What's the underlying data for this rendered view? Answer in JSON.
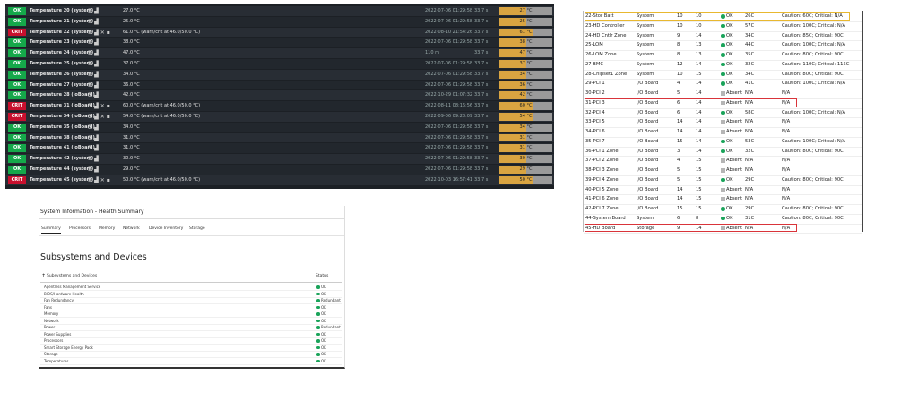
{
  "monitor": {
    "rows": [
      [
        "OK",
        "Temperature 20 (system)",
        "27.0 °C",
        "2022-07-06 01:29:58",
        "33.7 s",
        "27 °C"
      ],
      [
        "OK",
        "Temperature 21 (system)",
        "25.0 °C",
        "2022-07-06 01:29:58",
        "33.7 s",
        "25 °C"
      ],
      [
        "CRIT",
        "Temperature 22 (system)",
        "61.0 °C (warn/crit at 46.0/50.0 °C)",
        "2022-08-10 21:54:26",
        "33.7 s",
        "61 °C"
      ],
      [
        "OK",
        "Temperature 23 (system)",
        "38.0 °C",
        "2022-07-06 01:29:58",
        "33.7 s",
        "38 °C"
      ],
      [
        "OK",
        "Temperature 24 (system)",
        "47.0 °C",
        "110 m",
        "33.7 s",
        "47 °C"
      ],
      [
        "OK",
        "Temperature 25 (system)",
        "37.0 °C",
        "2022-07-06 01:29:58",
        "33.7 s",
        "37 °C"
      ],
      [
        "OK",
        "Temperature 26 (system)",
        "34.0 °C",
        "2022-07-06 01:29:58",
        "33.7 s",
        "34 °C"
      ],
      [
        "OK",
        "Temperature 27 (system)",
        "36.0 °C",
        "2022-07-06 01:29:58",
        "33.7 s",
        "36 °C"
      ],
      [
        "OK",
        "Temperature 28 (ioBoard)",
        "42.0 °C",
        "2022-10-29 01:07:32",
        "33.7 s",
        "42 °C"
      ],
      [
        "CRIT",
        "Temperature 31 (ioBoard)",
        "60.0 °C (warn/crit at 46.0/50.0 °C)",
        "2022-08-11 08:16:56",
        "33.7 s",
        "60 °C"
      ],
      [
        "CRIT",
        "Temperature 34 (ioBoard)",
        "54.0 °C (warn/crit at 46.0/50.0 °C)",
        "2022-09-06 09:28:09",
        "33.7 s",
        "54 °C"
      ],
      [
        "OK",
        "Temperature 35 (ioBoard)",
        "34.0 °C",
        "2022-07-06 01:29:58",
        "33.7 s",
        "34 °C"
      ],
      [
        "OK",
        "Temperature 38 (ioBoard)",
        "31.0 °C",
        "2022-07-06 01:29:58",
        "33.7 s",
        "31 °C"
      ],
      [
        "OK",
        "Temperature 41 (ioBoard)",
        "31.0 °C",
        "2022-07-06 01:29:58",
        "33.7 s",
        "31 °C"
      ],
      [
        "OK",
        "Temperature 42 (system)",
        "30.0 °C",
        "2022-07-06 01:29:58",
        "33.7 s",
        "30 °C"
      ],
      [
        "OK",
        "Temperature 44 (system)",
        "29.0 °C",
        "2022-07-06 01:29:58",
        "33.7 s",
        "29 °C"
      ],
      [
        "CRIT",
        "Temperature 45 (system)",
        "50.0 °C (warn/crit at 46.0/50.0 °C)",
        "2022-10-03 16:57:41",
        "33.7 s",
        "50 °C"
      ]
    ]
  },
  "health": {
    "title": "System Information - Health Summary",
    "tabs": [
      "Summary",
      "Processors",
      "Memory",
      "Network",
      "Device Inventory",
      "Storage"
    ],
    "heading": "Subsystems and Devices",
    "columns": [
      "Subsystems and Devices",
      "Status"
    ],
    "rows": [
      [
        "Agentless Management Service",
        "OK"
      ],
      [
        "BIOS/Hardware Health",
        "OK"
      ],
      [
        "Fan Redundancy",
        "Redundant"
      ],
      [
        "Fans",
        "OK"
      ],
      [
        "Memory",
        "OK"
      ],
      [
        "Network",
        "OK"
      ],
      [
        "Power",
        "Redundant"
      ],
      [
        "Power Supplies",
        "OK"
      ],
      [
        "Processors",
        "OK"
      ],
      [
        "Smart Storage Energy Pack",
        "OK"
      ],
      [
        "Storage",
        "OK"
      ],
      [
        "Temperatures",
        "OK"
      ]
    ]
  },
  "sensors": {
    "rows": [
      [
        "22-Stor Batt",
        "System",
        10,
        10,
        "OK",
        "26C",
        "Caution: 60C; Critical: N/A"
      ],
      [
        "23-HD Controller",
        "System",
        10,
        10,
        "OK",
        "57C",
        "Caution: 100C; Critical: N/A"
      ],
      [
        "24-HD Cntlr Zone",
        "System",
        9,
        14,
        "OK",
        "34C",
        "Caution: 85C; Critical: 90C"
      ],
      [
        "25-LOM",
        "System",
        8,
        13,
        "OK",
        "44C",
        "Caution: 100C; Critical: N/A"
      ],
      [
        "26-LOM Zone",
        "System",
        8,
        13,
        "OK",
        "35C",
        "Caution: 80C; Critical: 90C"
      ],
      [
        "27-BMC",
        "System",
        12,
        14,
        "OK",
        "32C",
        "Caution: 110C; Critical: 115C"
      ],
      [
        "28-Chipset1 Zone",
        "System",
        10,
        15,
        "OK",
        "34C",
        "Caution: 80C; Critical: 90C"
      ],
      [
        "29-PCI 1",
        "I/O Board",
        4,
        14,
        "OK",
        "41C",
        "Caution: 100C; Critical: N/A"
      ],
      [
        "30-PCI 2",
        "I/O Board",
        5,
        14,
        "Absent",
        "N/A",
        "N/A"
      ],
      [
        "31-PCI 3",
        "I/O Board",
        6,
        14,
        "Absent",
        "N/A",
        "N/A"
      ],
      [
        "32-PCI 4",
        "I/O Board",
        6,
        14,
        "OK",
        "58C",
        "Caution: 100C; Critical: N/A"
      ],
      [
        "33-PCI 5",
        "I/O Board",
        14,
        14,
        "Absent",
        "N/A",
        "N/A"
      ],
      [
        "34-PCI 6",
        "I/O Board",
        14,
        14,
        "Absent",
        "N/A",
        "N/A"
      ],
      [
        "35-PCI 7",
        "I/O Board",
        15,
        14,
        "OK",
        "53C",
        "Caution: 100C; Critical: N/A"
      ],
      [
        "36-PCI 1 Zone",
        "I/O Board",
        3,
        14,
        "OK",
        "32C",
        "Caution: 80C; Critical: 90C"
      ],
      [
        "37-PCI 2 Zone",
        "I/O Board",
        4,
        15,
        "Absent",
        "N/A",
        "N/A"
      ],
      [
        "38-PCI 3 Zone",
        "I/O Board",
        5,
        15,
        "Absent",
        "N/A",
        "N/A"
      ],
      [
        "39-PCI 4 Zone",
        "I/O Board",
        5,
        15,
        "OK",
        "29C",
        "Caution: 80C; Critical: 90C"
      ],
      [
        "40-PCI 5 Zone",
        "I/O Board",
        14,
        15,
        "Absent",
        "N/A",
        "N/A"
      ],
      [
        "41-PCI 6 Zone",
        "I/O Board",
        14,
        15,
        "Absent",
        "N/A",
        "N/A"
      ],
      [
        "42-PCI 7 Zone",
        "I/O Board",
        15,
        15,
        "OK",
        "29C",
        "Caution: 80C; Critical: 90C"
      ],
      [
        "44-System Board",
        "System",
        6,
        8,
        "OK",
        "31C",
        "Caution: 80C; Critical: 90C"
      ],
      [
        "45-HD Board",
        "Storage",
        9,
        14,
        "Absent",
        "N/A",
        "N/A"
      ]
    ],
    "highlights": [
      {
        "row": 0,
        "color": "#e8b830"
      },
      {
        "row": 9,
        "color": "#d9343a"
      },
      {
        "row": 22,
        "color": "#d9343a"
      }
    ]
  }
}
